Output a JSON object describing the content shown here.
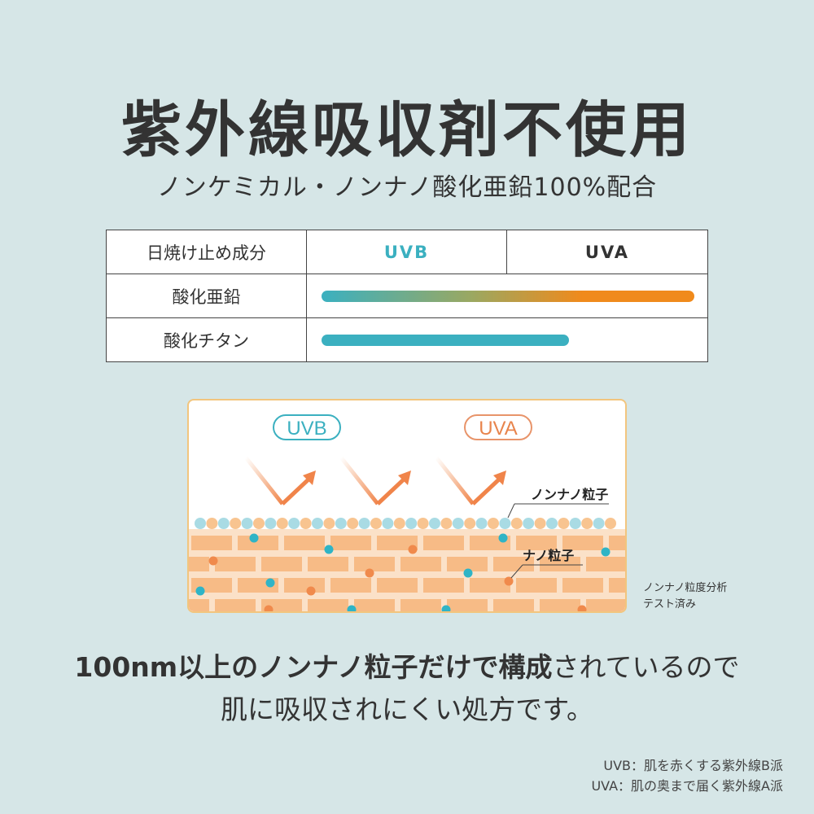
{
  "title": "紫外線吸収剤不使用",
  "subtitle": "ノンケミカル・ノンナノ酸化亜鉛100%配合",
  "table": {
    "headers": [
      "日焼け止め成分",
      "UVB",
      "UVA"
    ],
    "rows": [
      {
        "label": "酸化亜鉛",
        "coverage": "UVB+UVA"
      },
      {
        "label": "酸化チタン",
        "coverage": "UVB"
      }
    ]
  },
  "illustration": {
    "uvb_label": "UVB",
    "uva_label": "UVA",
    "nonnano_label": "ノンナノ粒子",
    "nano_label": "ナノ粒子"
  },
  "note": [
    "ノンナノ粒度分析",
    "テスト済み"
  ],
  "message": {
    "bold": "100nm以上のノンナノ粒子だけで構成",
    "regular": "されているので",
    "line2": "肌に吸収されにくい処方です。"
  },
  "footnotes": [
    "UVB：肌を赤くする紫外線B派",
    "UVA：肌の奥まで届く紫外線A派"
  ],
  "colors": {
    "uvb": "#3bb0c0",
    "uva": "#f08a1c",
    "background": "#d6e6e7",
    "skin": "#f7bf8c"
  }
}
